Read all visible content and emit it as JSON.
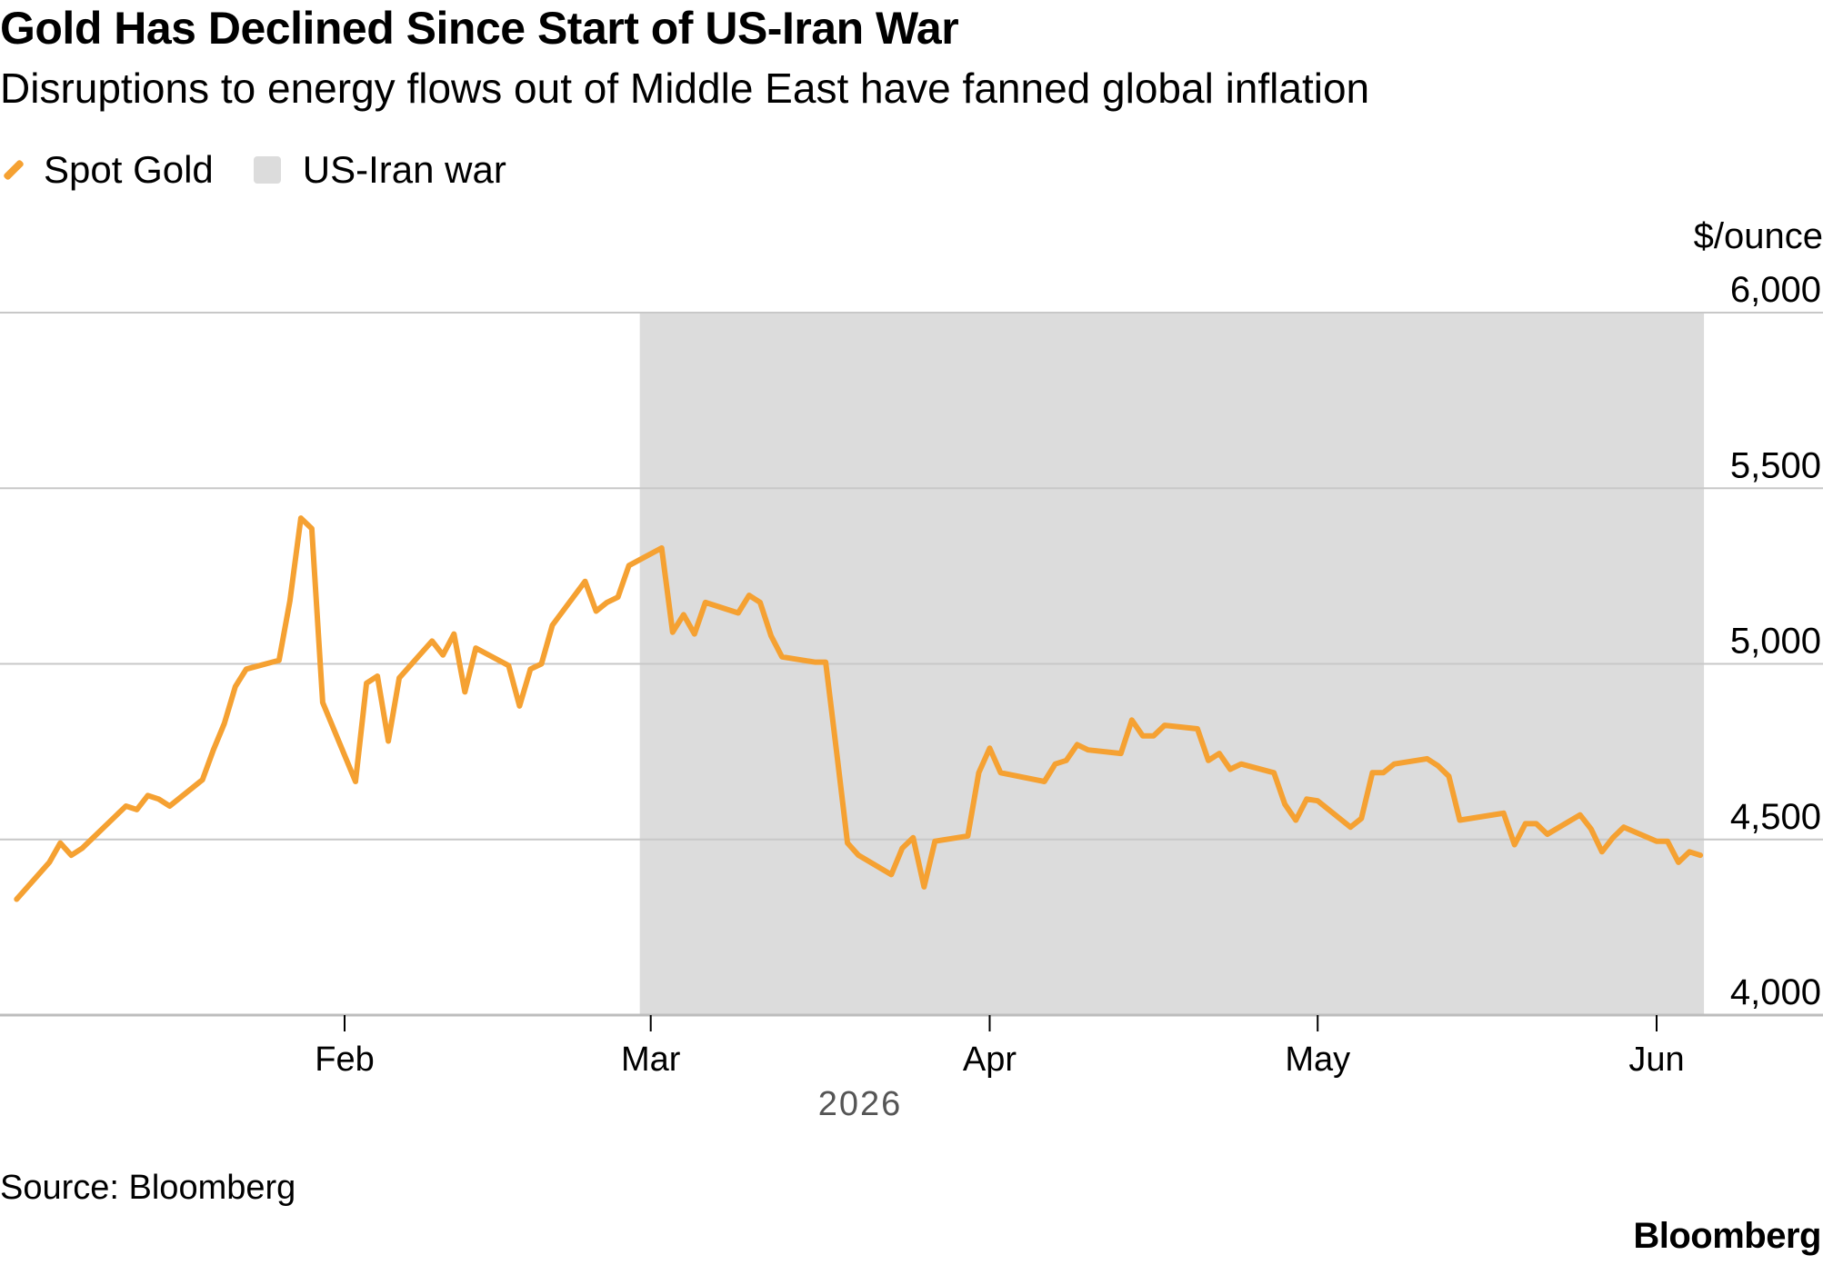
{
  "header": {
    "title": "Gold Has Declined Since Start of US-Iran War",
    "subtitle": "Disruptions to energy flows out of Middle East have fanned global inflation"
  },
  "legend": {
    "series_label": "Spot Gold",
    "shade_label": "US-Iran war"
  },
  "footer": {
    "source": "Source: Bloomberg",
    "brand": "Bloomberg"
  },
  "colors": {
    "line": "#f5a132",
    "shade": "#dcdcdc",
    "grid": "#c8c8c8"
  },
  "chart_data": {
    "type": "line",
    "title": "Gold Has Declined Since Start of US-Iran War",
    "subtitle": "Disruptions to energy flows out of Middle East have fanned global inflation",
    "ylabel": "$/ounce",
    "xlabel": "2026",
    "ylim": [
      4000,
      6000
    ],
    "y_ticks": [
      4000,
      4500,
      5000,
      5500,
      6000
    ],
    "y_tick_labels": [
      "4,000",
      "4,500",
      "5,000",
      "5,500",
      "6,000"
    ],
    "x_ticks": [
      "2026-02-01",
      "2026-03-01",
      "2026-04-01",
      "2026-05-01",
      "2026-06-01"
    ],
    "x_tick_labels": [
      "Feb",
      "Mar",
      "Apr",
      "May",
      "Jun"
    ],
    "x_range": [
      "2026-01-02",
      "2026-06-05"
    ],
    "grid": true,
    "legend_position": "top-left",
    "shaded_region": {
      "label": "US-Iran war",
      "start": "2026-02-28",
      "end": "2026-06-05"
    },
    "series": [
      {
        "name": "Spot Gold",
        "points": [
          [
            "2026-01-02",
            4330
          ],
          [
            "2026-01-05",
            4435
          ],
          [
            "2026-01-06",
            4490
          ],
          [
            "2026-01-07",
            4455
          ],
          [
            "2026-01-08",
            4475
          ],
          [
            "2026-01-09",
            4505
          ],
          [
            "2026-01-12",
            4595
          ],
          [
            "2026-01-13",
            4585
          ],
          [
            "2026-01-14",
            4625
          ],
          [
            "2026-01-15",
            4615
          ],
          [
            "2026-01-16",
            4595
          ],
          [
            "2026-01-19",
            4670
          ],
          [
            "2026-01-20",
            4755
          ],
          [
            "2026-01-21",
            4830
          ],
          [
            "2026-01-22",
            4935
          ],
          [
            "2026-01-23",
            4985
          ],
          [
            "2026-01-26",
            5010
          ],
          [
            "2026-01-27",
            5180
          ],
          [
            "2026-01-28",
            5415
          ],
          [
            "2026-01-29",
            5385
          ],
          [
            "2026-01-30",
            4890
          ],
          [
            "2026-02-02",
            4665
          ],
          [
            "2026-02-03",
            4945
          ],
          [
            "2026-02-04",
            4965
          ],
          [
            "2026-02-05",
            4780
          ],
          [
            "2026-02-06",
            4960
          ],
          [
            "2026-02-09",
            5065
          ],
          [
            "2026-02-10",
            5025
          ],
          [
            "2026-02-11",
            5085
          ],
          [
            "2026-02-12",
            4920
          ],
          [
            "2026-02-13",
            5045
          ],
          [
            "2026-02-16",
            4995
          ],
          [
            "2026-02-17",
            4880
          ],
          [
            "2026-02-18",
            4985
          ],
          [
            "2026-02-19",
            5000
          ],
          [
            "2026-02-20",
            5110
          ],
          [
            "2026-02-23",
            5235
          ],
          [
            "2026-02-24",
            5150
          ],
          [
            "2026-02-25",
            5175
          ],
          [
            "2026-02-26",
            5190
          ],
          [
            "2026-02-27",
            5280
          ],
          [
            "2026-03-02",
            5330
          ],
          [
            "2026-03-03",
            5090
          ],
          [
            "2026-03-04",
            5140
          ],
          [
            "2026-03-05",
            5085
          ],
          [
            "2026-03-06",
            5175
          ],
          [
            "2026-03-09",
            5145
          ],
          [
            "2026-03-10",
            5195
          ],
          [
            "2026-03-11",
            5175
          ],
          [
            "2026-03-12",
            5080
          ],
          [
            "2026-03-13",
            5020
          ],
          [
            "2026-03-16",
            5005
          ],
          [
            "2026-03-17",
            5005
          ],
          [
            "2026-03-18",
            4750
          ],
          [
            "2026-03-19",
            4490
          ],
          [
            "2026-03-20",
            4455
          ],
          [
            "2026-03-23",
            4400
          ],
          [
            "2026-03-24",
            4475
          ],
          [
            "2026-03-25",
            4505
          ],
          [
            "2026-03-26",
            4365
          ],
          [
            "2026-03-27",
            4495
          ],
          [
            "2026-03-30",
            4510
          ],
          [
            "2026-03-31",
            4690
          ],
          [
            "2026-04-01",
            4760
          ],
          [
            "2026-04-02",
            4690
          ],
          [
            "2026-04-06",
            4665
          ],
          [
            "2026-04-07",
            4715
          ],
          [
            "2026-04-08",
            4725
          ],
          [
            "2026-04-09",
            4770
          ],
          [
            "2026-04-10",
            4755
          ],
          [
            "2026-04-13",
            4745
          ],
          [
            "2026-04-14",
            4840
          ],
          [
            "2026-04-15",
            4795
          ],
          [
            "2026-04-16",
            4795
          ],
          [
            "2026-04-17",
            4825
          ],
          [
            "2026-04-20",
            4815
          ],
          [
            "2026-04-21",
            4725
          ],
          [
            "2026-04-22",
            4745
          ],
          [
            "2026-04-23",
            4700
          ],
          [
            "2026-04-24",
            4715
          ],
          [
            "2026-04-27",
            4690
          ],
          [
            "2026-04-28",
            4600
          ],
          [
            "2026-04-29",
            4555
          ],
          [
            "2026-04-30",
            4615
          ],
          [
            "2026-05-01",
            4610
          ],
          [
            "2026-05-04",
            4535
          ],
          [
            "2026-05-05",
            4560
          ],
          [
            "2026-05-06",
            4690
          ],
          [
            "2026-05-07",
            4690
          ],
          [
            "2026-05-08",
            4715
          ],
          [
            "2026-05-11",
            4730
          ],
          [
            "2026-05-12",
            4710
          ],
          [
            "2026-05-13",
            4680
          ],
          [
            "2026-05-14",
            4555
          ],
          [
            "2026-05-18",
            4575
          ],
          [
            "2026-05-19",
            4485
          ],
          [
            "2026-05-20",
            4545
          ],
          [
            "2026-05-21",
            4545
          ],
          [
            "2026-05-22",
            4515
          ],
          [
            "2026-05-25",
            4570
          ],
          [
            "2026-05-26",
            4530
          ],
          [
            "2026-05-27",
            4465
          ],
          [
            "2026-05-28",
            4505
          ],
          [
            "2026-05-29",
            4535
          ],
          [
            "2026-06-01",
            4495
          ],
          [
            "2026-06-02",
            4495
          ],
          [
            "2026-06-03",
            4435
          ],
          [
            "2026-06-04",
            4465
          ],
          [
            "2026-06-05",
            4455
          ]
        ]
      }
    ]
  }
}
